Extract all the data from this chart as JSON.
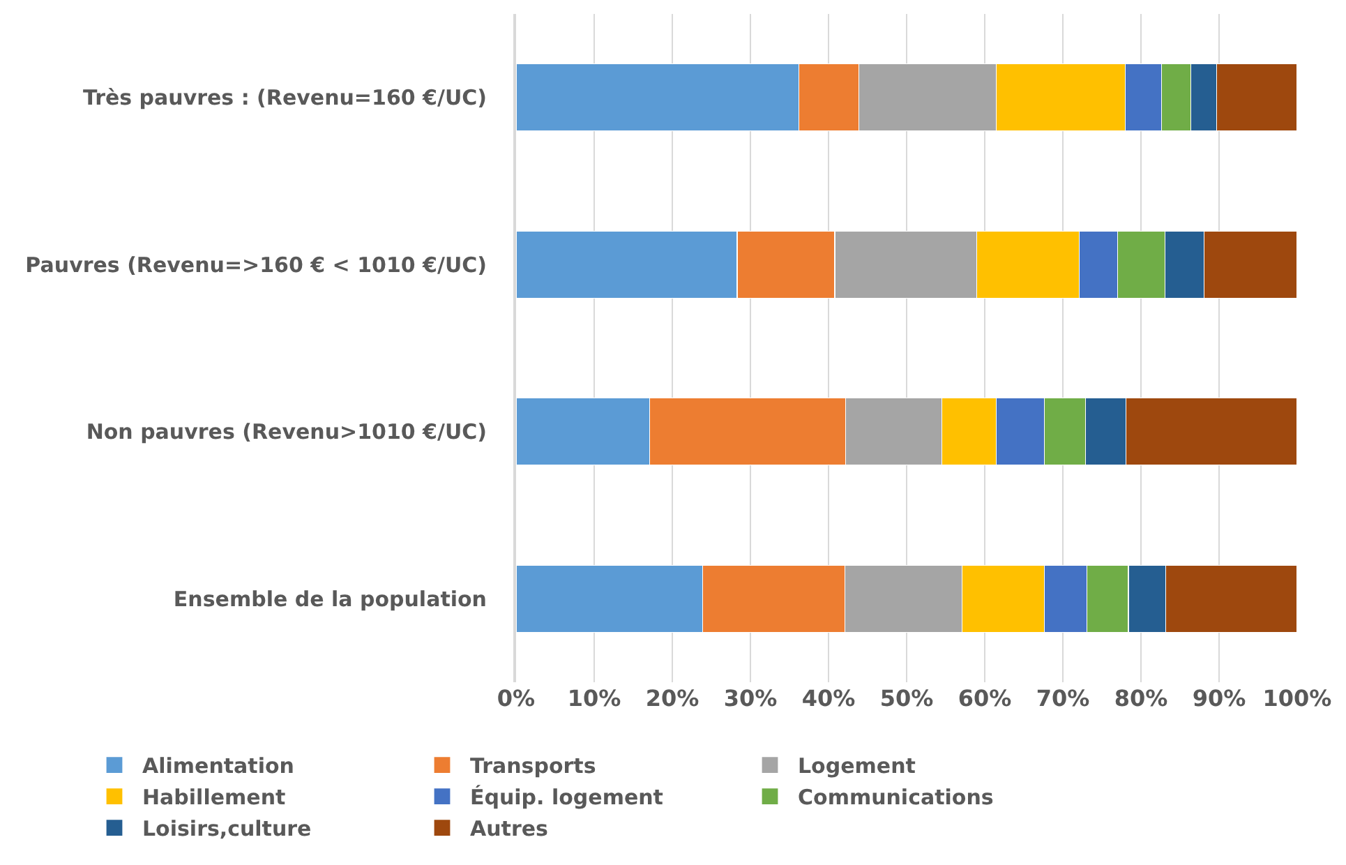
{
  "chart_data": {
    "type": "bar",
    "orientation": "horizontal",
    "stacked": true,
    "categories": [
      "Très pauvres : (Revenu=160 €/UC)",
      "Pauvres (Revenu=>160 € < 1010 €/UC)",
      "Non pauvres (Revenu>1010 €/UC)",
      "Ensemble de la population"
    ],
    "series": [
      {
        "name": "Alimentation",
        "color": "#5b9bd5",
        "values": [
          36.2,
          28.3,
          17.1,
          23.9
        ]
      },
      {
        "name": "Transports",
        "color": "#ed7d31",
        "values": [
          7.7,
          12.5,
          25.1,
          18.2
        ]
      },
      {
        "name": "Logement",
        "color": "#a5a5a5",
        "values": [
          17.6,
          18.2,
          12.3,
          15.0
        ]
      },
      {
        "name": "Habillement",
        "color": "#ffc000",
        "values": [
          16.5,
          13.1,
          7.0,
          10.5
        ]
      },
      {
        "name": "Équip. logement",
        "color": "#4472c4",
        "values": [
          4.6,
          4.9,
          6.1,
          5.5
        ]
      },
      {
        "name": "Communications",
        "color": "#70ad47",
        "values": [
          3.8,
          6.1,
          5.3,
          5.3
        ]
      },
      {
        "name": "Loisirs,culture",
        "color": "#255e91",
        "values": [
          3.3,
          5.0,
          5.2,
          4.8
        ]
      },
      {
        "name": "Autres",
        "color": "#9e480e",
        "values": [
          10.3,
          11.9,
          21.9,
          16.8
        ]
      }
    ],
    "xlim": [
      0,
      100
    ],
    "xticks": [
      {
        "value": 0,
        "label": "0%"
      },
      {
        "value": 10,
        "label": "10%"
      },
      {
        "value": 20,
        "label": "20%"
      },
      {
        "value": 30,
        "label": "30%"
      },
      {
        "value": 40,
        "label": "40%"
      },
      {
        "value": 50,
        "label": "50%"
      },
      {
        "value": 60,
        "label": "60%"
      },
      {
        "value": 70,
        "label": "70%"
      },
      {
        "value": 80,
        "label": "80%"
      },
      {
        "value": 90,
        "label": "90%"
      },
      {
        "value": 100,
        "label": "100%"
      }
    ],
    "grid": "x",
    "legend": "bottom"
  }
}
